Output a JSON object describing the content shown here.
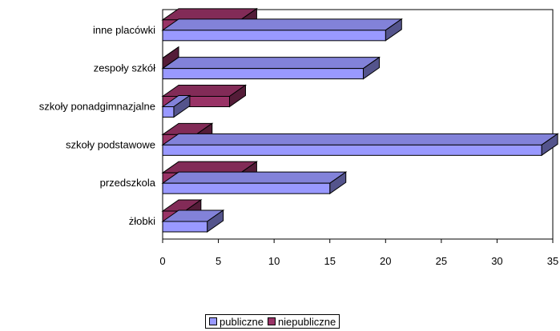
{
  "chart_data": {
    "type": "bar",
    "orientation": "horizontal",
    "three_d": true,
    "categories": [
      "żłobki",
      "przedszkola",
      "szkoły podstawowe",
      "szkoły ponadgimnazjalne",
      "zespoły szkół",
      "inne placówki"
    ],
    "category_labels": [
      "żłobki",
      "przedszkola",
      "szkoły podstawowe",
      "szkoły ponadgimnazjalne",
      "zespoły szkół",
      "inne placówki"
    ],
    "series": [
      {
        "name": "publiczne",
        "values": [
          4,
          15,
          34,
          1,
          18,
          20
        ],
        "color": "#9999ff"
      },
      {
        "name": "niepubliczne",
        "values": [
          2,
          7,
          3,
          6,
          0,
          7
        ],
        "color": "#993366"
      }
    ],
    "xlim": [
      0,
      35
    ],
    "xticks": [
      0,
      5,
      10,
      15,
      20,
      25,
      30,
      35
    ],
    "title": "",
    "xlabel": "",
    "ylabel": "",
    "grid": false,
    "legend_position": "bottom"
  }
}
